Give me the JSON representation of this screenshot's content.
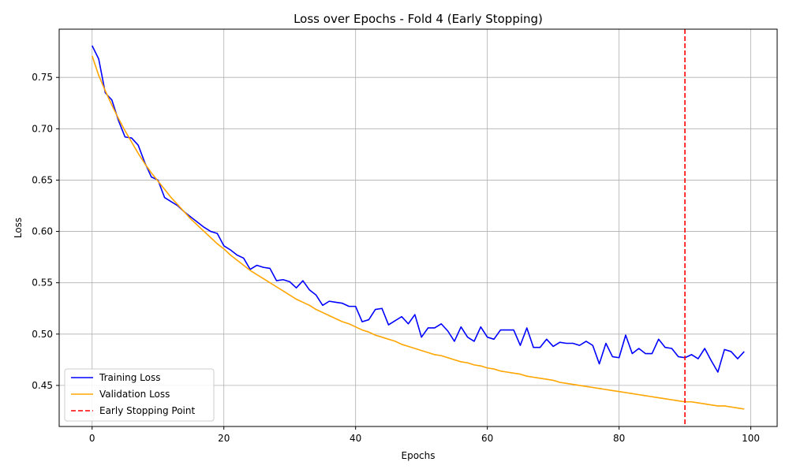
{
  "chart_data": {
    "type": "line",
    "title": "Loss over Epochs - Fold 4 (Early Stopping)",
    "xlabel": "Epochs",
    "ylabel": "Loss",
    "xlim": [
      -5,
      104
    ],
    "ylim": [
      0.41,
      0.797
    ],
    "xticks": [
      0,
      20,
      40,
      60,
      80,
      100
    ],
    "yticks": [
      0.45,
      0.5,
      0.55,
      0.6,
      0.65,
      0.7,
      0.75
    ],
    "ytick_labels": [
      "0.45",
      "0.50",
      "0.55",
      "0.60",
      "0.65",
      "0.70",
      "0.75"
    ],
    "grid": true,
    "legend_position": "lower-left",
    "series": [
      {
        "name": "Training Loss",
        "color": "#0000ff",
        "x": [
          0,
          1,
          2,
          3,
          4,
          5,
          6,
          7,
          8,
          9,
          10,
          11,
          12,
          13,
          14,
          15,
          16,
          17,
          18,
          19,
          20,
          21,
          22,
          23,
          24,
          25,
          26,
          27,
          28,
          29,
          30,
          31,
          32,
          33,
          34,
          35,
          36,
          37,
          38,
          39,
          40,
          41,
          42,
          43,
          44,
          45,
          46,
          47,
          48,
          49,
          50,
          51,
          52,
          53,
          54,
          55,
          56,
          57,
          58,
          59,
          60,
          61,
          62,
          63,
          64,
          65,
          66,
          67,
          68,
          69,
          70,
          71,
          72,
          73,
          74,
          75,
          76,
          77,
          78,
          79,
          80,
          81,
          82,
          83,
          84,
          85,
          86,
          87,
          88,
          89,
          90,
          91,
          92,
          93,
          94,
          95,
          96,
          97,
          98,
          99
        ],
        "values": [
          0.781,
          0.768,
          0.735,
          0.728,
          0.708,
          0.692,
          0.691,
          0.684,
          0.667,
          0.653,
          0.65,
          0.633,
          0.629,
          0.625,
          0.619,
          0.614,
          0.609,
          0.604,
          0.6,
          0.598,
          0.586,
          0.582,
          0.577,
          0.574,
          0.563,
          0.567,
          0.565,
          0.564,
          0.552,
          0.553,
          0.551,
          0.545,
          0.552,
          0.543,
          0.538,
          0.528,
          0.532,
          0.531,
          0.53,
          0.527,
          0.527,
          0.512,
          0.514,
          0.524,
          0.525,
          0.509,
          0.513,
          0.517,
          0.51,
          0.519,
          0.497,
          0.506,
          0.506,
          0.51,
          0.503,
          0.493,
          0.507,
          0.497,
          0.493,
          0.507,
          0.497,
          0.495,
          0.504,
          0.504,
          0.504,
          0.489,
          0.506,
          0.487,
          0.487,
          0.495,
          0.488,
          0.492,
          0.491,
          0.491,
          0.489,
          0.493,
          0.489,
          0.471,
          0.491,
          0.478,
          0.477,
          0.499,
          0.481,
          0.486,
          0.481,
          0.481,
          0.495,
          0.487,
          0.486,
          0.478,
          0.477,
          0.48,
          0.476,
          0.486,
          0.474,
          0.463,
          0.485,
          0.483,
          0.476,
          0.483
        ]
      },
      {
        "name": "Validation Loss",
        "color": "#ffa500",
        "x": [
          0,
          1,
          2,
          3,
          4,
          5,
          6,
          7,
          8,
          9,
          10,
          11,
          12,
          13,
          14,
          15,
          16,
          17,
          18,
          19,
          20,
          21,
          22,
          23,
          24,
          25,
          26,
          27,
          28,
          29,
          30,
          31,
          32,
          33,
          34,
          35,
          36,
          37,
          38,
          39,
          40,
          41,
          42,
          43,
          44,
          45,
          46,
          47,
          48,
          49,
          50,
          51,
          52,
          53,
          54,
          55,
          56,
          57,
          58,
          59,
          60,
          61,
          62,
          63,
          64,
          65,
          66,
          67,
          68,
          69,
          70,
          71,
          72,
          73,
          74,
          75,
          76,
          77,
          78,
          79,
          80,
          81,
          82,
          83,
          84,
          85,
          86,
          87,
          88,
          89,
          90,
          91,
          92,
          93,
          94,
          95,
          96,
          97,
          98,
          99
        ],
        "values": [
          0.771,
          0.752,
          0.737,
          0.723,
          0.71,
          0.698,
          0.687,
          0.676,
          0.666,
          0.657,
          0.649,
          0.641,
          0.633,
          0.626,
          0.619,
          0.612,
          0.606,
          0.6,
          0.594,
          0.588,
          0.583,
          0.577,
          0.572,
          0.567,
          0.562,
          0.558,
          0.554,
          0.55,
          0.546,
          0.542,
          0.538,
          0.534,
          0.531,
          0.528,
          0.524,
          0.521,
          0.518,
          0.515,
          0.512,
          0.51,
          0.507,
          0.504,
          0.502,
          0.499,
          0.497,
          0.495,
          0.493,
          0.49,
          0.488,
          0.486,
          0.484,
          0.482,
          0.48,
          0.479,
          0.477,
          0.475,
          0.473,
          0.472,
          0.47,
          0.469,
          0.467,
          0.466,
          0.464,
          0.463,
          0.462,
          0.461,
          0.459,
          0.458,
          0.457,
          0.456,
          0.455,
          0.453,
          0.452,
          0.451,
          0.45,
          0.449,
          0.448,
          0.447,
          0.446,
          0.445,
          0.444,
          0.443,
          0.442,
          0.441,
          0.44,
          0.439,
          0.438,
          0.437,
          0.436,
          0.435,
          0.434,
          0.434,
          0.433,
          0.432,
          0.431,
          0.43,
          0.43,
          0.429,
          0.428,
          0.427
        ]
      }
    ],
    "vlines": [
      {
        "name": "Early Stopping Point",
        "x": 90,
        "color": "#ff0000",
        "style": "dashed"
      }
    ]
  }
}
